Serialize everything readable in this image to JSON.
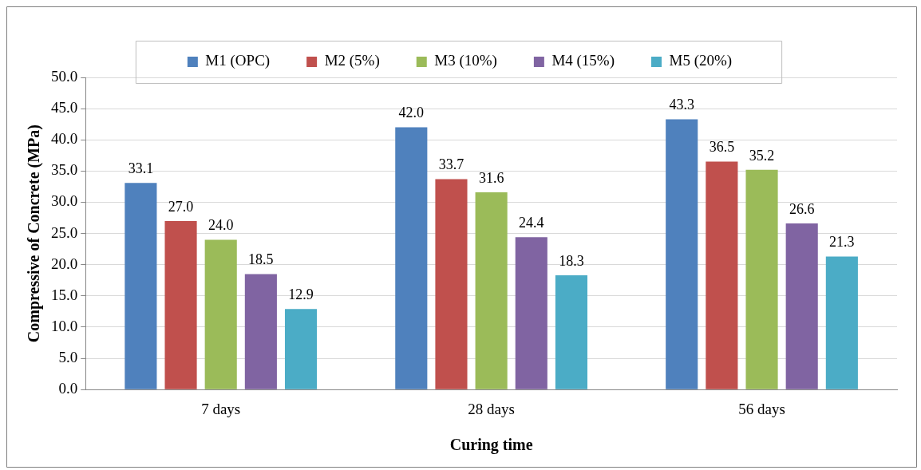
{
  "chart_data": {
    "type": "bar",
    "xlabel": "Curing time",
    "ylabel": "Compressive of Concrete (MPa)",
    "categories": [
      "7 days",
      "28 days",
      "56 days"
    ],
    "series": [
      {
        "name": "M1 (OPC)",
        "color": "#4f81bd",
        "values": [
          33.1,
          42.0,
          43.3
        ],
        "value_labels": [
          "33.1",
          "42.0",
          "43.3"
        ]
      },
      {
        "name": "M2 (5%)",
        "color": "#c0504d",
        "values": [
          27.0,
          33.7,
          36.5
        ],
        "value_labels": [
          "27.0",
          "33.7",
          "36.5"
        ]
      },
      {
        "name": "M3 (10%)",
        "color": "#9bbb59",
        "values": [
          24.0,
          31.6,
          35.2
        ],
        "value_labels": [
          "24.0",
          "31.6",
          "35.2"
        ]
      },
      {
        "name": "M4 (15%)",
        "color": "#8064a2",
        "values": [
          18.5,
          24.4,
          26.6
        ],
        "value_labels": [
          "18.5",
          "24.4",
          "26.6"
        ]
      },
      {
        "name": "M5 (20%)",
        "color": "#4bacc6",
        "values": [
          12.9,
          18.3,
          21.3
        ],
        "value_labels": [
          "12.9",
          "18.3",
          "21.3"
        ]
      }
    ],
    "ylim": [
      0,
      50
    ],
    "yticks": [
      {
        "value": 0,
        "label": "0.0"
      },
      {
        "value": 5,
        "label": "5.0"
      },
      {
        "value": 10,
        "label": "10.0"
      },
      {
        "value": 15,
        "label": "15.0"
      },
      {
        "value": 20,
        "label": "20.0"
      },
      {
        "value": 25,
        "label": "25.0"
      },
      {
        "value": 30,
        "label": "30.0"
      },
      {
        "value": 35,
        "label": "35.0"
      },
      {
        "value": 40,
        "label": "40.0"
      },
      {
        "value": 45,
        "label": "45.0"
      },
      {
        "value": 50,
        "label": "50.0"
      }
    ],
    "grid": "y",
    "legend": "top"
  }
}
